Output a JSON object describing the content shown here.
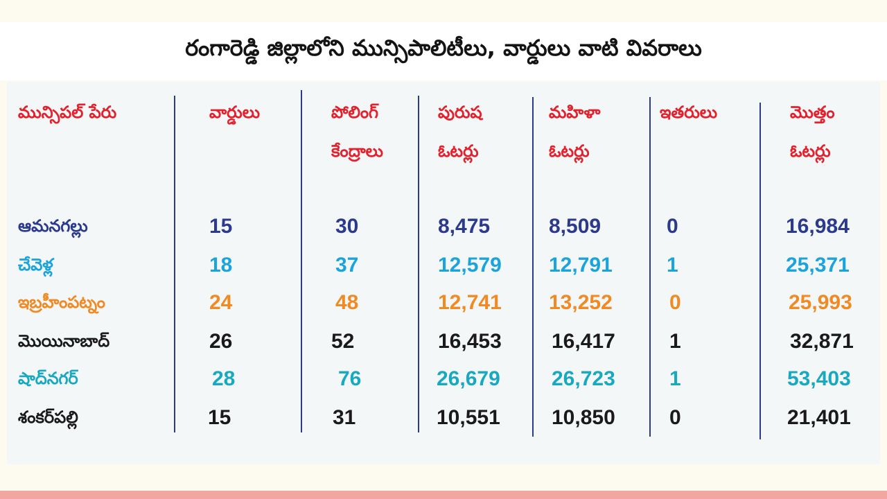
{
  "title": "రంగారెడ్డి జిల్లాలోని మున్సిపాలిటీలు, వార్డులు వాటి వివరాలు",
  "colors": {
    "header": "#e3202c",
    "row_navy": "#2b3a8c",
    "row_sky": "#1ba3dc",
    "row_orange": "#f08a24",
    "row_black": "#1a1a1a",
    "row_teal": "#18a8c0",
    "divider": "#2b3a8c"
  },
  "columns": {
    "municipality": "మున్సిపల్ పేరు",
    "wards": "వార్డులు",
    "polling_1": "పోలింగ్",
    "polling_2": "కేంద్రాలు",
    "male_1": "పురుష",
    "male_2": "ఓటర్లు",
    "female_1": "మహిళా",
    "female_2": "ఓటర్లు",
    "others": "ఇతరులు",
    "total_1": "మొత్తం",
    "total_2": "ఓటర్లు"
  },
  "rows": [
    {
      "name": "ఆమనగల్లు",
      "wards": "15",
      "polling": "30",
      "male": "8,475",
      "female": "8,509",
      "others": "0",
      "total": "16,984"
    },
    {
      "name": "చేవెళ్ల",
      "wards": "18",
      "polling": "37",
      "male": "12,579",
      "female": "12,791",
      "others": "1",
      "total": "25,371"
    },
    {
      "name": "ఇబ్రహీంపట్నం",
      "wards": "24",
      "polling": "48",
      "male": "12,741",
      "female": "13,252",
      "others": "0",
      "total": "25,993"
    },
    {
      "name": "మొయినాబాద్",
      "wards": "26",
      "polling": "52",
      "male": "16,453",
      "female": "16,417",
      "others": "1",
      "total": "32,871"
    },
    {
      "name": "షాద్‌నగర్",
      "wards": "28",
      "polling": "76",
      "male": "26,679",
      "female": "26,723",
      "others": "1",
      "total": "53,403"
    },
    {
      "name": "శంకర్‌పల్లి",
      "wards": "15",
      "polling": "31",
      "male": "10,551",
      "female": "10,850",
      "others": "0",
      "total": "21,401"
    }
  ]
}
